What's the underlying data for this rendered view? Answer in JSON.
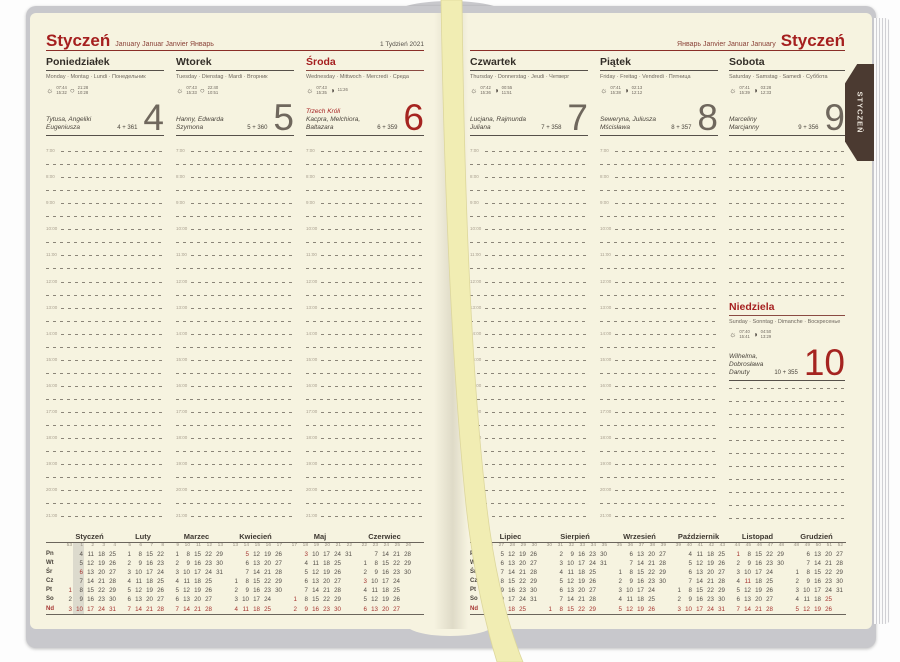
{
  "tab": {
    "label": "STYCZEŃ"
  },
  "left_header": {
    "month": "Styczeń",
    "intl": "January Januar Janvier Январь",
    "week": "1 Tydzień 2021"
  },
  "right_header": {
    "intl": "Январь Janvier Januar January",
    "month": "Styczeń"
  },
  "icons": {
    "sun_icon": "☼",
    "moon_icon_open": "○",
    "moon_icon_half": "◑"
  },
  "hours": [
    "7:00",
    "8:00",
    "9:00",
    "10:00",
    "11:00",
    "12:00",
    "13:00",
    "14:00",
    "15:00",
    "16:00",
    "17:00",
    "18:00",
    "19:00",
    "20:00",
    "21:00"
  ],
  "day_columns": [
    {
      "name": "Poniedziałek",
      "langs": "Monday · Montag · Lundi · Понедельник",
      "sun": [
        "07:44",
        "15:32"
      ],
      "moon": [
        "21:28",
        "10:28"
      ],
      "moon_glyph": "○",
      "names": [
        "Tytusa, Angeliki",
        "Eugeniusza"
      ],
      "count": "4 + 361",
      "num": "4",
      "red": false,
      "page": "left"
    },
    {
      "name": "Wtorek",
      "langs": "Tuesday · Dienstag · Mardi · Вторник",
      "sun": [
        "07:43",
        "15:33"
      ],
      "moon": [
        "22:40",
        "10:51"
      ],
      "moon_glyph": "○",
      "names": [
        "Hanny, Edwarda",
        "Szymona"
      ],
      "count": "5 + 360",
      "num": "5",
      "red": false,
      "page": "left"
    },
    {
      "name": "Środa",
      "langs": "Wednesday · Mittwoch · Mercredi · Среда",
      "sun": [
        "07:43",
        "15:35"
      ],
      "moon": [
        "11:26"
      ],
      "moon_glyph": "◑",
      "names": [
        "Trzech Króli",
        "Kacpra, Melchiora, Baltazara"
      ],
      "first_name_red": true,
      "count": "6 + 359",
      "num": "6",
      "red": true,
      "page": "left"
    },
    {
      "name": "Czwartek",
      "langs": "Thursday · Donnerstag · Jeudi · Четверг",
      "sun": [
        "07:42",
        "15:36"
      ],
      "moon": [
        "00:55",
        "11:51"
      ],
      "moon_glyph": "◑",
      "names": [
        "Lucjana, Rajmunda",
        "Juliana"
      ],
      "count": "7 + 358",
      "num": "7",
      "red": false,
      "page": "right"
    },
    {
      "name": "Piątek",
      "langs": "Friday · Freitag · Vendredi · Пятница",
      "sun": [
        "07:41",
        "15:38"
      ],
      "moon": [
        "02:13",
        "12:12"
      ],
      "moon_glyph": "◑",
      "names": [
        "Seweryna, Juliusza",
        "Mścisława"
      ],
      "count": "8 + 357",
      "num": "8",
      "red": false,
      "page": "right"
    },
    {
      "name": "Sobota",
      "langs": "Saturday · Samstag · Samedi · Суббота",
      "sun": [
        "07:41",
        "15:39"
      ],
      "moon": [
        "03:28",
        "12:33"
      ],
      "moon_glyph": "◑",
      "names": [
        "Marceliny",
        "Marcjanny"
      ],
      "count": "9 + 356",
      "num": "9",
      "red": false,
      "page": "right",
      "has_sunday_block": true
    }
  ],
  "sunday": {
    "name": "Niedziela",
    "langs": "Sunday · Sonntag · Dimanche · Воскресенье",
    "sun": [
      "07:40",
      "15:41"
    ],
    "moon": [
      "04:50",
      "13:29"
    ],
    "moon_glyph": "◑",
    "names": [
      "Wilhelma, Dobrosława",
      "Danuty"
    ],
    "count": "10 + 355",
    "num": "10",
    "red": true
  },
  "mini": {
    "weekdays": [
      "Pn",
      "Wt",
      "Śr",
      "Cz",
      "Pt",
      "So",
      "Nd"
    ],
    "left_months": [
      {
        "name": "Styczeń",
        "weeks": [
          "53",
          "1",
          "2",
          "3",
          "4"
        ],
        "highlight_week": "1",
        "red_days": [
          1,
          6
        ],
        "days": [
          [
            null,
            4,
            11,
            18,
            25
          ],
          [
            null,
            5,
            12,
            19,
            26
          ],
          [
            null,
            6,
            13,
            20,
            27
          ],
          [
            null,
            7,
            14,
            21,
            28
          ],
          [
            1,
            8,
            15,
            22,
            29
          ],
          [
            2,
            9,
            16,
            23,
            30
          ],
          [
            3,
            10,
            17,
            24,
            31
          ]
        ]
      },
      {
        "name": "Luty",
        "weeks": [
          "5",
          "6",
          "7",
          "8"
        ],
        "red_days": [],
        "days": [
          [
            1,
            8,
            15,
            22
          ],
          [
            2,
            9,
            16,
            23
          ],
          [
            3,
            10,
            17,
            24
          ],
          [
            4,
            11,
            18,
            25
          ],
          [
            5,
            12,
            19,
            26
          ],
          [
            6,
            13,
            20,
            27
          ],
          [
            7,
            14,
            21,
            28
          ]
        ]
      },
      {
        "name": "Marzec",
        "weeks": [
          "9",
          "10",
          "11",
          "12",
          "13"
        ],
        "red_days": [],
        "days": [
          [
            1,
            8,
            15,
            22,
            29
          ],
          [
            2,
            9,
            16,
            23,
            30
          ],
          [
            3,
            10,
            17,
            24,
            31
          ],
          [
            4,
            11,
            18,
            25,
            null
          ],
          [
            5,
            12,
            19,
            26,
            null
          ],
          [
            6,
            13,
            20,
            27,
            null
          ],
          [
            7,
            14,
            21,
            28,
            null
          ]
        ]
      },
      {
        "name": "Kwiecień",
        "weeks": [
          "13",
          "14",
          "15",
          "16",
          "17"
        ],
        "red_days": [
          5
        ],
        "days": [
          [
            null,
            5,
            12,
            19,
            26
          ],
          [
            null,
            6,
            13,
            20,
            27
          ],
          [
            null,
            7,
            14,
            21,
            28
          ],
          [
            1,
            8,
            15,
            22,
            29
          ],
          [
            2,
            9,
            16,
            23,
            30
          ],
          [
            3,
            10,
            17,
            24,
            null
          ],
          [
            4,
            11,
            18,
            25,
            null
          ]
        ]
      },
      {
        "name": "Maj",
        "weeks": [
          "17",
          "18",
          "19",
          "20",
          "21",
          "22"
        ],
        "red_days": [
          1,
          3
        ],
        "days": [
          [
            null,
            3,
            10,
            17,
            24,
            31
          ],
          [
            null,
            4,
            11,
            18,
            25,
            null
          ],
          [
            null,
            5,
            12,
            19,
            26,
            null
          ],
          [
            null,
            6,
            13,
            20,
            27,
            null
          ],
          [
            null,
            7,
            14,
            21,
            28,
            null
          ],
          [
            1,
            8,
            15,
            22,
            29,
            null
          ],
          [
            2,
            9,
            16,
            23,
            30,
            null
          ]
        ]
      },
      {
        "name": "Czerwiec",
        "weeks": [
          "22",
          "23",
          "24",
          "25",
          "26"
        ],
        "red_days": [
          3
        ],
        "days": [
          [
            null,
            7,
            14,
            21,
            28
          ],
          [
            1,
            8,
            15,
            22,
            29
          ],
          [
            2,
            9,
            16,
            23,
            30
          ],
          [
            3,
            10,
            17,
            24,
            null
          ],
          [
            4,
            11,
            18,
            25,
            null
          ],
          [
            5,
            12,
            19,
            26,
            null
          ],
          [
            6,
            13,
            20,
            27,
            null
          ]
        ]
      }
    ],
    "right_months": [
      {
        "name": "Lipiec",
        "weeks": [
          "26",
          "27",
          "28",
          "29",
          "30"
        ],
        "red_days": [],
        "days": [
          [
            null,
            5,
            12,
            19,
            26
          ],
          [
            null,
            6,
            13,
            20,
            27
          ],
          [
            null,
            7,
            14,
            21,
            28
          ],
          [
            1,
            8,
            15,
            22,
            29
          ],
          [
            2,
            9,
            16,
            23,
            30
          ],
          [
            3,
            10,
            17,
            24,
            31
          ],
          [
            4,
            11,
            18,
            25,
            null
          ]
        ]
      },
      {
        "name": "Sierpień",
        "weeks": [
          "30",
          "31",
          "32",
          "33",
          "34",
          "35"
        ],
        "red_days": [],
        "days": [
          [
            null,
            2,
            9,
            16,
            23,
            30
          ],
          [
            null,
            3,
            10,
            17,
            24,
            31
          ],
          [
            null,
            4,
            11,
            18,
            25,
            null
          ],
          [
            null,
            5,
            12,
            19,
            26,
            null
          ],
          [
            null,
            6,
            13,
            20,
            27,
            null
          ],
          [
            null,
            7,
            14,
            21,
            28,
            null
          ],
          [
            1,
            8,
            15,
            22,
            29,
            null
          ]
        ]
      },
      {
        "name": "Wrzesień",
        "weeks": [
          "35",
          "36",
          "37",
          "38",
          "39"
        ],
        "red_days": [],
        "days": [
          [
            null,
            6,
            13,
            20,
            27
          ],
          [
            null,
            7,
            14,
            21,
            28
          ],
          [
            1,
            8,
            15,
            22,
            29
          ],
          [
            2,
            9,
            16,
            23,
            30
          ],
          [
            3,
            10,
            17,
            24,
            null
          ],
          [
            4,
            11,
            18,
            25,
            null
          ],
          [
            5,
            12,
            19,
            26,
            null
          ]
        ]
      },
      {
        "name": "Październik",
        "weeks": [
          "39",
          "40",
          "41",
          "42",
          "43"
        ],
        "red_days": [],
        "days": [
          [
            null,
            4,
            11,
            18,
            25
          ],
          [
            null,
            5,
            12,
            19,
            26
          ],
          [
            null,
            6,
            13,
            20,
            27
          ],
          [
            null,
            7,
            14,
            21,
            28
          ],
          [
            1,
            8,
            15,
            22,
            29
          ],
          [
            2,
            9,
            16,
            23,
            30
          ],
          [
            3,
            10,
            17,
            24,
            31
          ]
        ]
      },
      {
        "name": "Listopad",
        "weeks": [
          "44",
          "45",
          "46",
          "47",
          "48"
        ],
        "red_days": [
          1,
          11
        ],
        "days": [
          [
            1,
            8,
            15,
            22,
            29
          ],
          [
            2,
            9,
            16,
            23,
            30
          ],
          [
            3,
            10,
            17,
            24,
            null
          ],
          [
            4,
            11,
            18,
            25,
            null
          ],
          [
            5,
            12,
            19,
            26,
            null
          ],
          [
            6,
            13,
            20,
            27,
            null
          ],
          [
            7,
            14,
            21,
            28,
            null
          ]
        ]
      },
      {
        "name": "Grudzień",
        "weeks": [
          "48",
          "49",
          "50",
          "51",
          "52"
        ],
        "red_days": [
          25,
          26
        ],
        "days": [
          [
            null,
            6,
            13,
            20,
            27
          ],
          [
            null,
            7,
            14,
            21,
            28
          ],
          [
            1,
            8,
            15,
            22,
            29
          ],
          [
            2,
            9,
            16,
            23,
            30
          ],
          [
            3,
            10,
            17,
            24,
            31
          ],
          [
            4,
            11,
            18,
            25,
            null
          ],
          [
            5,
            12,
            19,
            26,
            null
          ]
        ]
      }
    ]
  },
  "colors": {
    "paper": "#f6f3e0",
    "accent_red": "#a51f1f",
    "big_number_gray": "#6f675d",
    "page_block_gray": "#c8c8cc",
    "ribbon_yellow": "#f1edb3",
    "tab_brown": "#4b3a31",
    "highlight_gray": "#dcdacd"
  }
}
